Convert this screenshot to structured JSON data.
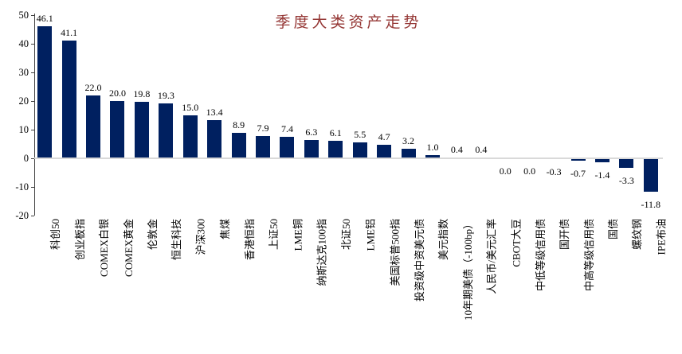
{
  "chart_data": {
    "type": "bar",
    "title": "季度大类资产走势",
    "categories": [
      "科创50",
      "创业板指",
      "COMEX白银",
      "COMEX黄金",
      "伦敦金",
      "恒生科技",
      "沪深300",
      "焦煤",
      "香港恒指",
      "上证50",
      "LME铜",
      "纳斯达克100指",
      "北证50",
      "LME铝",
      "美国标普500指",
      "投资级中资美元债",
      "美元指数",
      "10年期美债（-100bp）",
      "人民币/美元汇率",
      "CBOT大豆",
      "中低等级信用债",
      "国开债",
      "中高等级信用债",
      "国债",
      "螺纹钢",
      "IPE布油"
    ],
    "values": [
      46.1,
      41.1,
      22.0,
      20.0,
      19.8,
      19.3,
      15.0,
      13.4,
      8.9,
      7.9,
      7.4,
      6.3,
      6.1,
      5.5,
      4.7,
      3.2,
      1.0,
      0.4,
      0.4,
      0.0,
      0.0,
      -0.3,
      -0.7,
      -1.4,
      -3.3,
      -11.8
    ],
    "value_label_decimals": 1,
    "yticks": [
      50,
      40,
      30,
      20,
      10,
      0,
      -10,
      -20
    ],
    "ylim": [
      -20,
      50
    ],
    "xlabel": "",
    "ylabel": "",
    "grid": false,
    "legend": false,
    "bar_color": "#002060",
    "title_color": "#953735",
    "zero_line_color": "#d9d9d9",
    "axis_color": "#404040",
    "text_color": "#000000"
  }
}
